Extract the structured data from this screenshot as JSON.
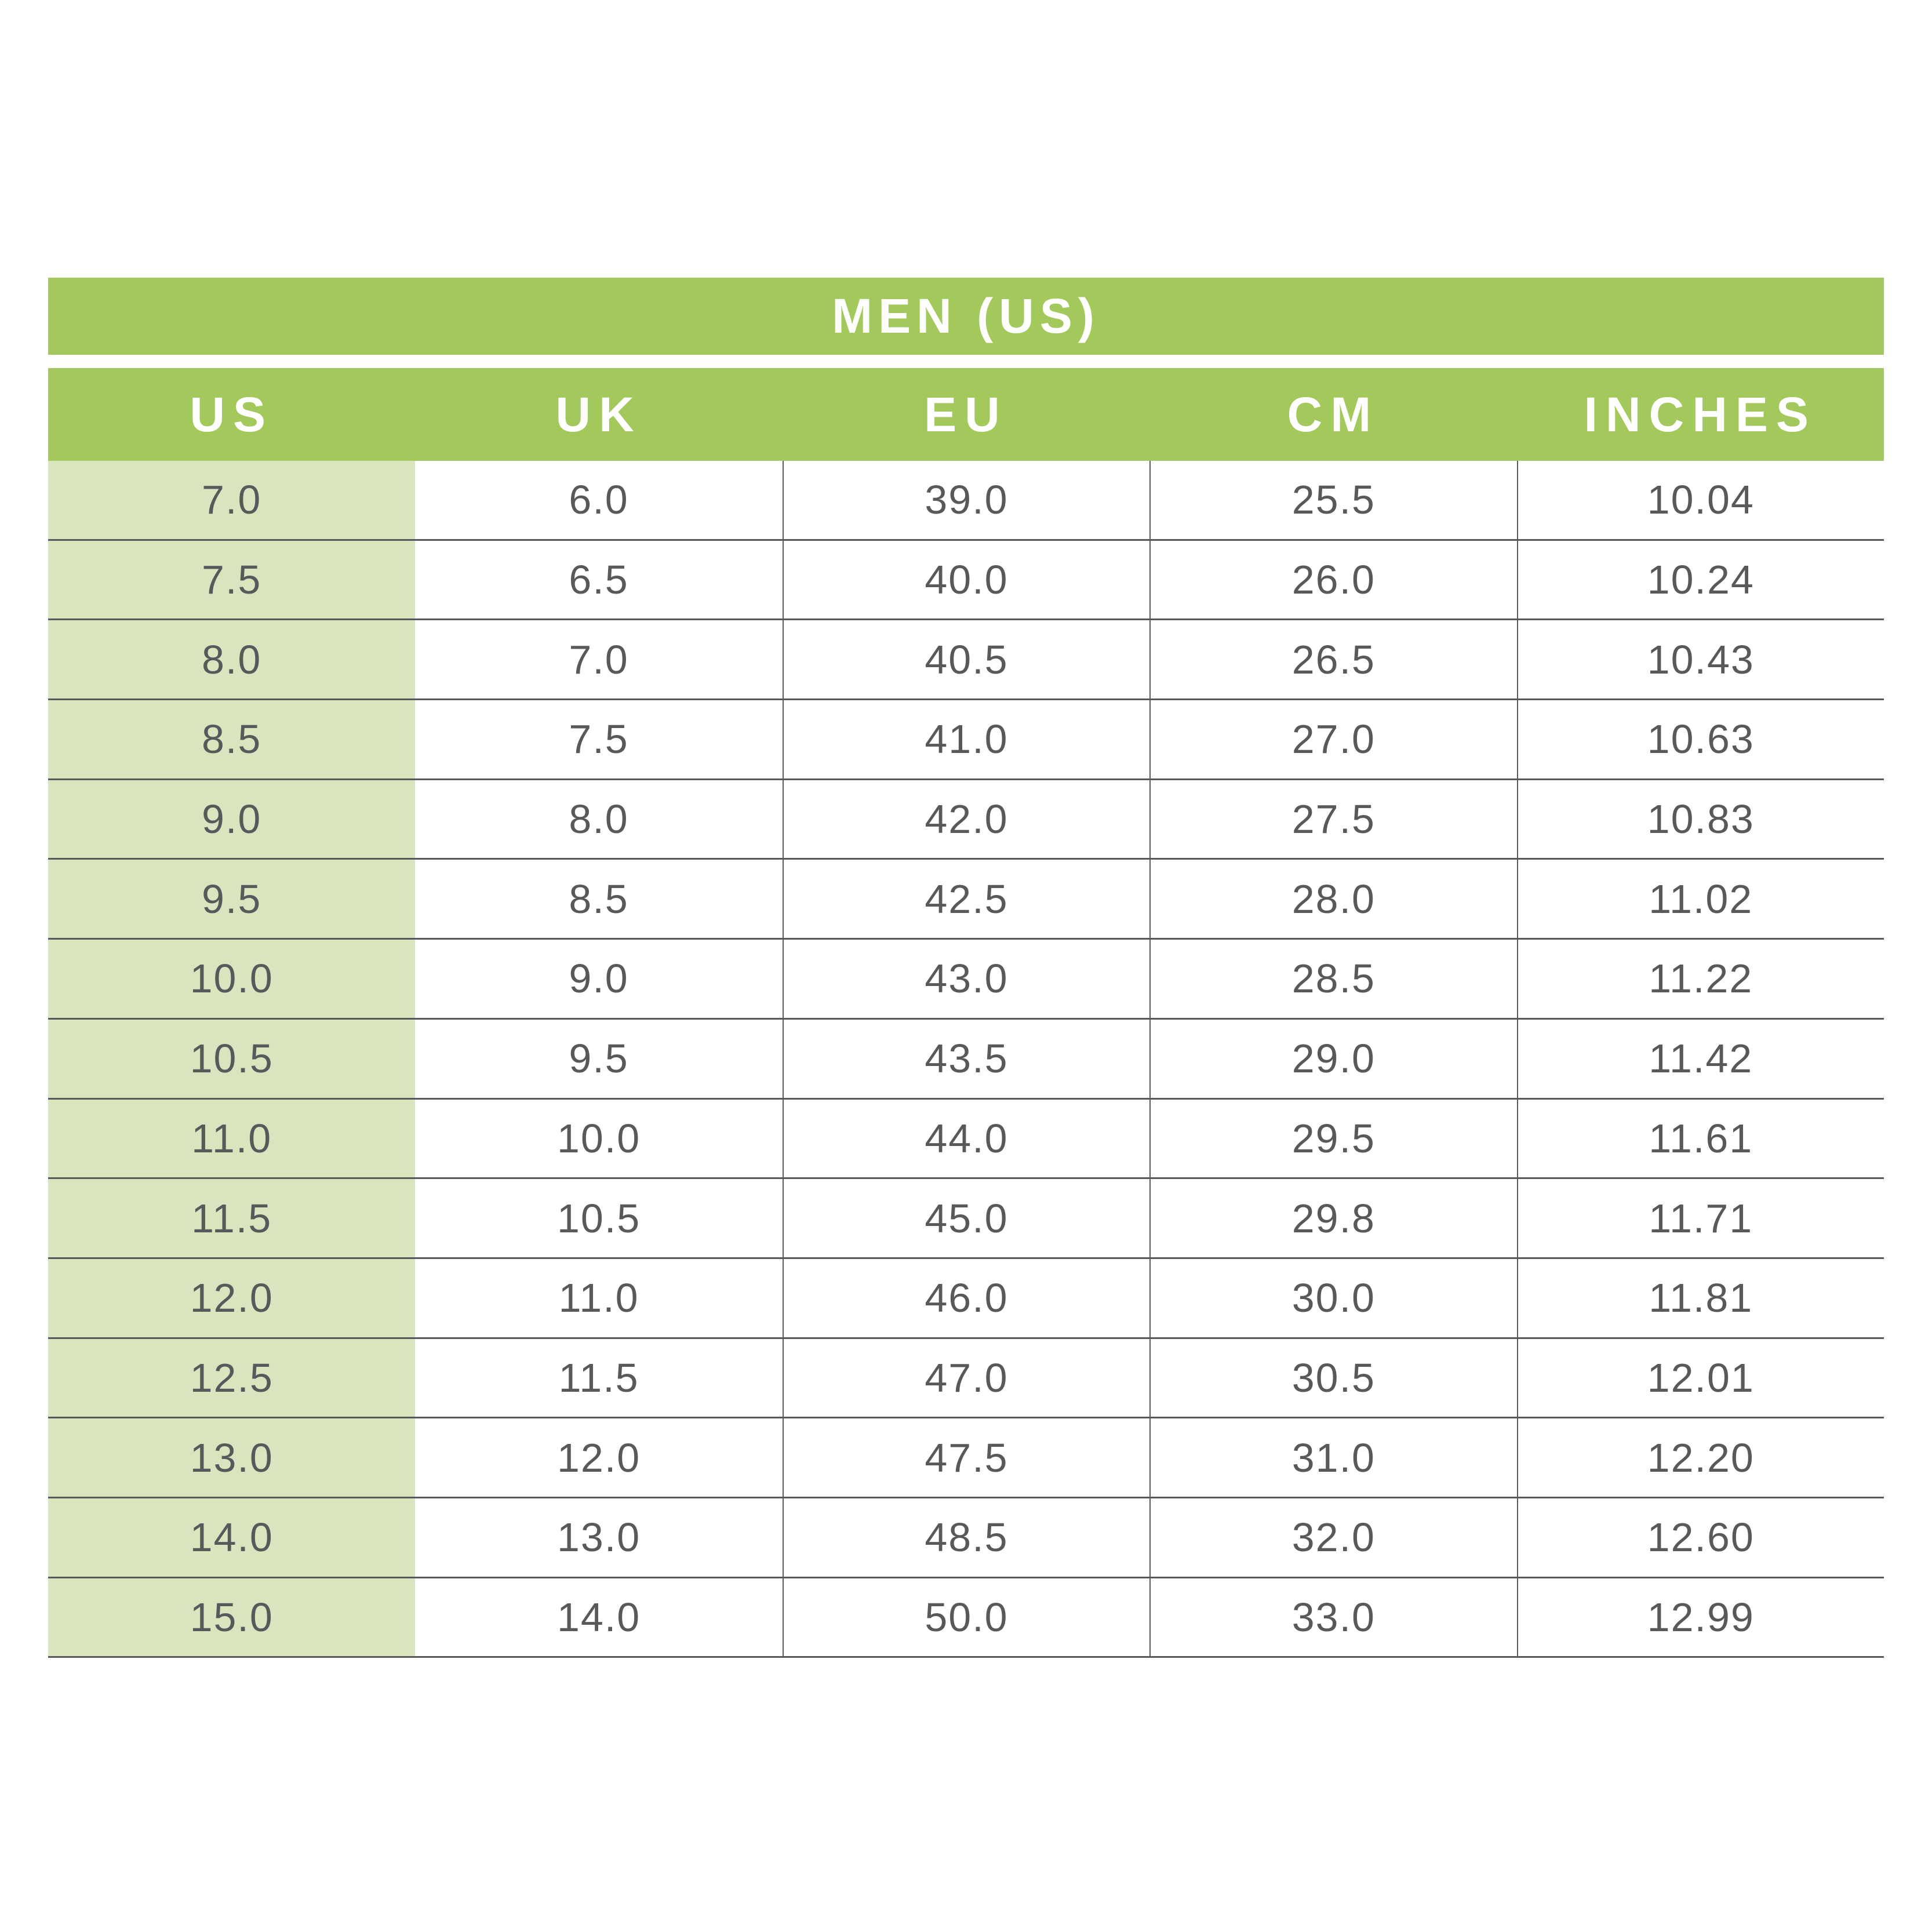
{
  "title": "MEN (US)",
  "table": {
    "columns": [
      "US",
      "UK",
      "EU",
      "CM",
      "INCHES"
    ],
    "rows": [
      [
        "7.0",
        "6.0",
        "39.0",
        "25.5",
        "10.04"
      ],
      [
        "7.5",
        "6.5",
        "40.0",
        "26.0",
        "10.24"
      ],
      [
        "8.0",
        "7.0",
        "40.5",
        "26.5",
        "10.43"
      ],
      [
        "8.5",
        "7.5",
        "41.0",
        "27.0",
        "10.63"
      ],
      [
        "9.0",
        "8.0",
        "42.0",
        "27.5",
        "10.83"
      ],
      [
        "9.5",
        "8.5",
        "42.5",
        "28.0",
        "11.02"
      ],
      [
        "10.0",
        "9.0",
        "43.0",
        "28.5",
        "11.22"
      ],
      [
        "10.5",
        "9.5",
        "43.5",
        "29.0",
        "11.42"
      ],
      [
        "11.0",
        "10.0",
        "44.0",
        "29.5",
        "11.61"
      ],
      [
        "11.5",
        "10.5",
        "45.0",
        "29.8",
        "11.71"
      ],
      [
        "12.0",
        "11.0",
        "46.0",
        "30.0",
        "11.81"
      ],
      [
        "12.5",
        "11.5",
        "47.0",
        "30.5",
        "12.01"
      ],
      [
        "13.0",
        "12.0",
        "47.5",
        "31.0",
        "12.20"
      ],
      [
        "14.0",
        "13.0",
        "48.5",
        "32.0",
        "12.60"
      ],
      [
        "15.0",
        "14.0",
        "50.0",
        "33.0",
        "12.99"
      ]
    ]
  },
  "colors": {
    "header_green": "#A3C95C",
    "first_column_green": "#D8E5BE",
    "text_gray": "#58595B",
    "grid_line_gray": "#58595B",
    "header_text": "#FFFFFF",
    "background": "#FFFFFF"
  },
  "chart_data": {
    "type": "table",
    "title": "MEN (US)",
    "columns": [
      "US",
      "UK",
      "EU",
      "CM",
      "INCHES"
    ],
    "rows": [
      [
        7.0,
        6.0,
        39.0,
        25.5,
        10.04
      ],
      [
        7.5,
        6.5,
        40.0,
        26.0,
        10.24
      ],
      [
        8.0,
        7.0,
        40.5,
        26.5,
        10.43
      ],
      [
        8.5,
        7.5,
        41.0,
        27.0,
        10.63
      ],
      [
        9.0,
        8.0,
        42.0,
        27.5,
        10.83
      ],
      [
        9.5,
        8.5,
        42.5,
        28.0,
        11.02
      ],
      [
        10.0,
        9.0,
        43.0,
        28.5,
        11.22
      ],
      [
        10.5,
        9.5,
        43.5,
        29.0,
        11.42
      ],
      [
        11.0,
        10.0,
        44.0,
        29.5,
        11.61
      ],
      [
        11.5,
        10.5,
        45.0,
        29.8,
        11.71
      ],
      [
        12.0,
        11.0,
        46.0,
        30.0,
        11.81
      ],
      [
        12.5,
        11.5,
        47.0,
        30.5,
        12.01
      ],
      [
        13.0,
        12.0,
        47.5,
        31.0,
        12.2
      ],
      [
        14.0,
        13.0,
        48.5,
        32.0,
        12.6
      ],
      [
        15.0,
        14.0,
        50.0,
        33.0,
        12.99
      ]
    ],
    "layout_hints": {
      "header_style": "green band with white bold labels",
      "first_column_highlighted": true,
      "gridlines": "horizontal separators under every data row; vertical separators between columns 2-5 only"
    }
  }
}
